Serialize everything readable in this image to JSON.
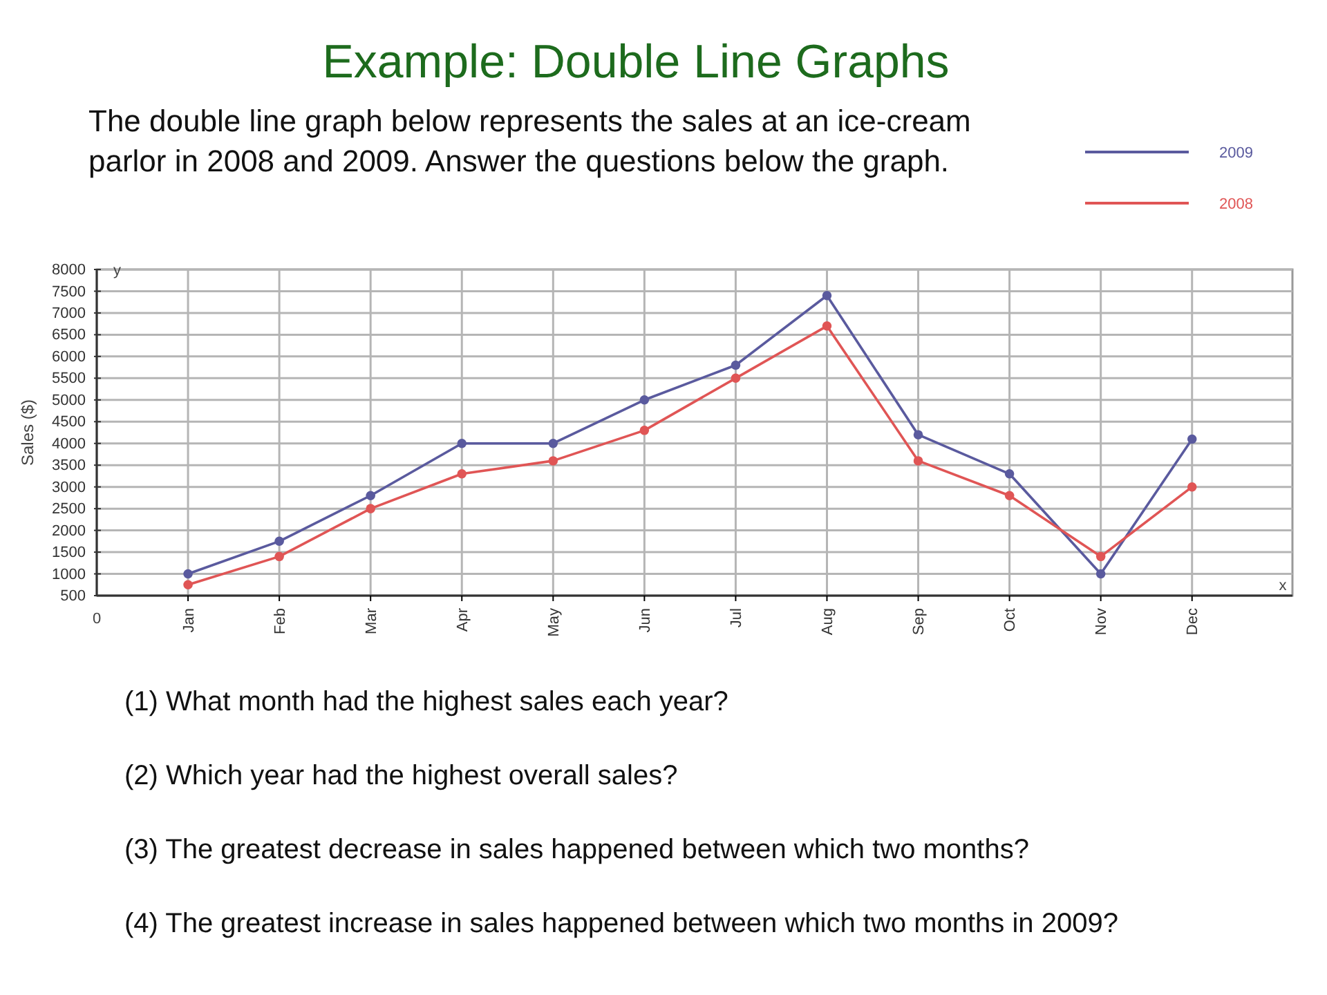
{
  "chart_data": {
    "type": "line",
    "title": "Example: Double Line Graphs",
    "subtitle": "The double line graph below represents the sales at an ice-cream parlor in 2008 and 2009. Answer the questions below the graph.",
    "xlabel": "x",
    "ylabel": "Sales ($)",
    "annotations": [
      "y",
      "0",
      "(1) What month had the highest sales each year?",
      "(2) Which year had the highest overall sales?",
      "(3) The greatest decrease in sales happened between which two months?",
      "(4) The greatest increase in sales happened between which two months in 2009?"
    ],
    "categories": [
      "Jan",
      "Feb",
      "Mar",
      "Apr",
      "May",
      "Jun",
      "Jul",
      "Aug",
      "Sep",
      "Oct",
      "Nov",
      "Dec"
    ],
    "series": [
      {
        "name": "2009",
        "color": "#5a5a9e",
        "values": [
          1000,
          1750,
          2800,
          4000,
          4000,
          5000,
          5800,
          7400,
          4200,
          3300,
          1000,
          4100
        ]
      },
      {
        "name": "2008",
        "color": "#e05555",
        "values": [
          750,
          1400,
          2500,
          3300,
          3600,
          4300,
          5500,
          6700,
          3600,
          2800,
          1400,
          3000
        ]
      }
    ],
    "ylim": [
      500,
      8000
    ],
    "yticks": [
      500,
      1000,
      1500,
      2000,
      2500,
      3000,
      3500,
      4000,
      4500,
      5000,
      5500,
      6000,
      6500,
      7000,
      7500,
      8000
    ],
    "grid": true,
    "legend": "top right",
    "marker": "circle",
    "line_style": "solid"
  }
}
